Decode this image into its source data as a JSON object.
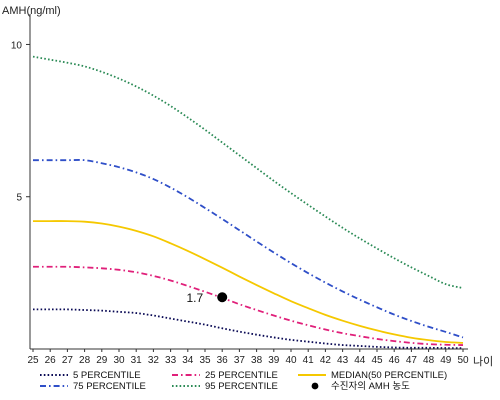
{
  "chart_data": {
    "type": "line",
    "ylabel": "AMH(ng/ml)",
    "xlabel": "나이",
    "ylim": [
      0,
      11
    ],
    "xlim": [
      25,
      50
    ],
    "yticks": [
      5,
      10
    ],
    "x": [
      25,
      26,
      27,
      28,
      29,
      30,
      31,
      32,
      33,
      34,
      35,
      36,
      37,
      38,
      39,
      40,
      41,
      42,
      43,
      44,
      45,
      46,
      47,
      48,
      49,
      50
    ],
    "series": [
      {
        "name": "5 PERCENTILE",
        "color": "#0a0a55",
        "dash": "dot",
        "values": [
          1.3,
          1.3,
          1.3,
          1.28,
          1.26,
          1.22,
          1.18,
          1.1,
          1.0,
          0.9,
          0.8,
          0.68,
          0.57,
          0.47,
          0.38,
          0.3,
          0.24,
          0.18,
          0.13,
          0.1,
          0.07,
          0.05,
          0.04,
          0.04,
          0.03,
          0.03
        ]
      },
      {
        "name": "25 PERCENTILE",
        "color": "#e0207a",
        "dash": "dashdot",
        "values": [
          2.7,
          2.7,
          2.7,
          2.68,
          2.65,
          2.6,
          2.52,
          2.4,
          2.25,
          2.07,
          1.88,
          1.68,
          1.47,
          1.28,
          1.1,
          0.93,
          0.78,
          0.64,
          0.52,
          0.42,
          0.33,
          0.26,
          0.2,
          0.16,
          0.14,
          0.13
        ]
      },
      {
        "name": "MEDIAN(50 PERCENTILE)",
        "color": "#f5c800",
        "dash": "solid",
        "values": [
          4.2,
          4.2,
          4.2,
          4.18,
          4.12,
          4.02,
          3.88,
          3.7,
          3.47,
          3.22,
          2.95,
          2.67,
          2.38,
          2.1,
          1.83,
          1.57,
          1.34,
          1.12,
          0.93,
          0.76,
          0.61,
          0.48,
          0.37,
          0.29,
          0.23,
          0.2
        ]
      },
      {
        "name": "75 PERCENTILE",
        "color": "#2f4fc8",
        "dash": "dashdot",
        "values": [
          6.2,
          6.2,
          6.2,
          6.2,
          6.1,
          5.97,
          5.8,
          5.58,
          5.3,
          4.98,
          4.63,
          4.27,
          3.9,
          3.53,
          3.17,
          2.82,
          2.49,
          2.18,
          1.89,
          1.62,
          1.37,
          1.13,
          0.92,
          0.73,
          0.56,
          0.38
        ]
      },
      {
        "name": "95 PERCENTILE",
        "color": "#2a8a55",
        "dash": "dot",
        "values": [
          9.6,
          9.5,
          9.4,
          9.28,
          9.1,
          8.88,
          8.62,
          8.32,
          7.98,
          7.6,
          7.2,
          6.78,
          6.36,
          5.94,
          5.52,
          5.12,
          4.73,
          4.35,
          3.98,
          3.63,
          3.3,
          2.98,
          2.68,
          2.4,
          2.13,
          2.0
        ]
      }
    ],
    "highlight": {
      "x": 36,
      "y": 1.7,
      "label": "1.7",
      "color": "#000000"
    },
    "legend": [
      {
        "label": "5 PERCENTILE",
        "series": 0
      },
      {
        "label": "25 PERCENTILE",
        "series": 1
      },
      {
        "label": "MEDIAN(50 PERCENTILE)",
        "series": 2
      },
      {
        "label": "75 PERCENTILE",
        "series": 3
      },
      {
        "label": "95 PERCENTILE",
        "series": 4
      },
      {
        "label": "수진자의 AMH 농도",
        "marker": "dot"
      }
    ],
    "legend_position": "bottom"
  }
}
